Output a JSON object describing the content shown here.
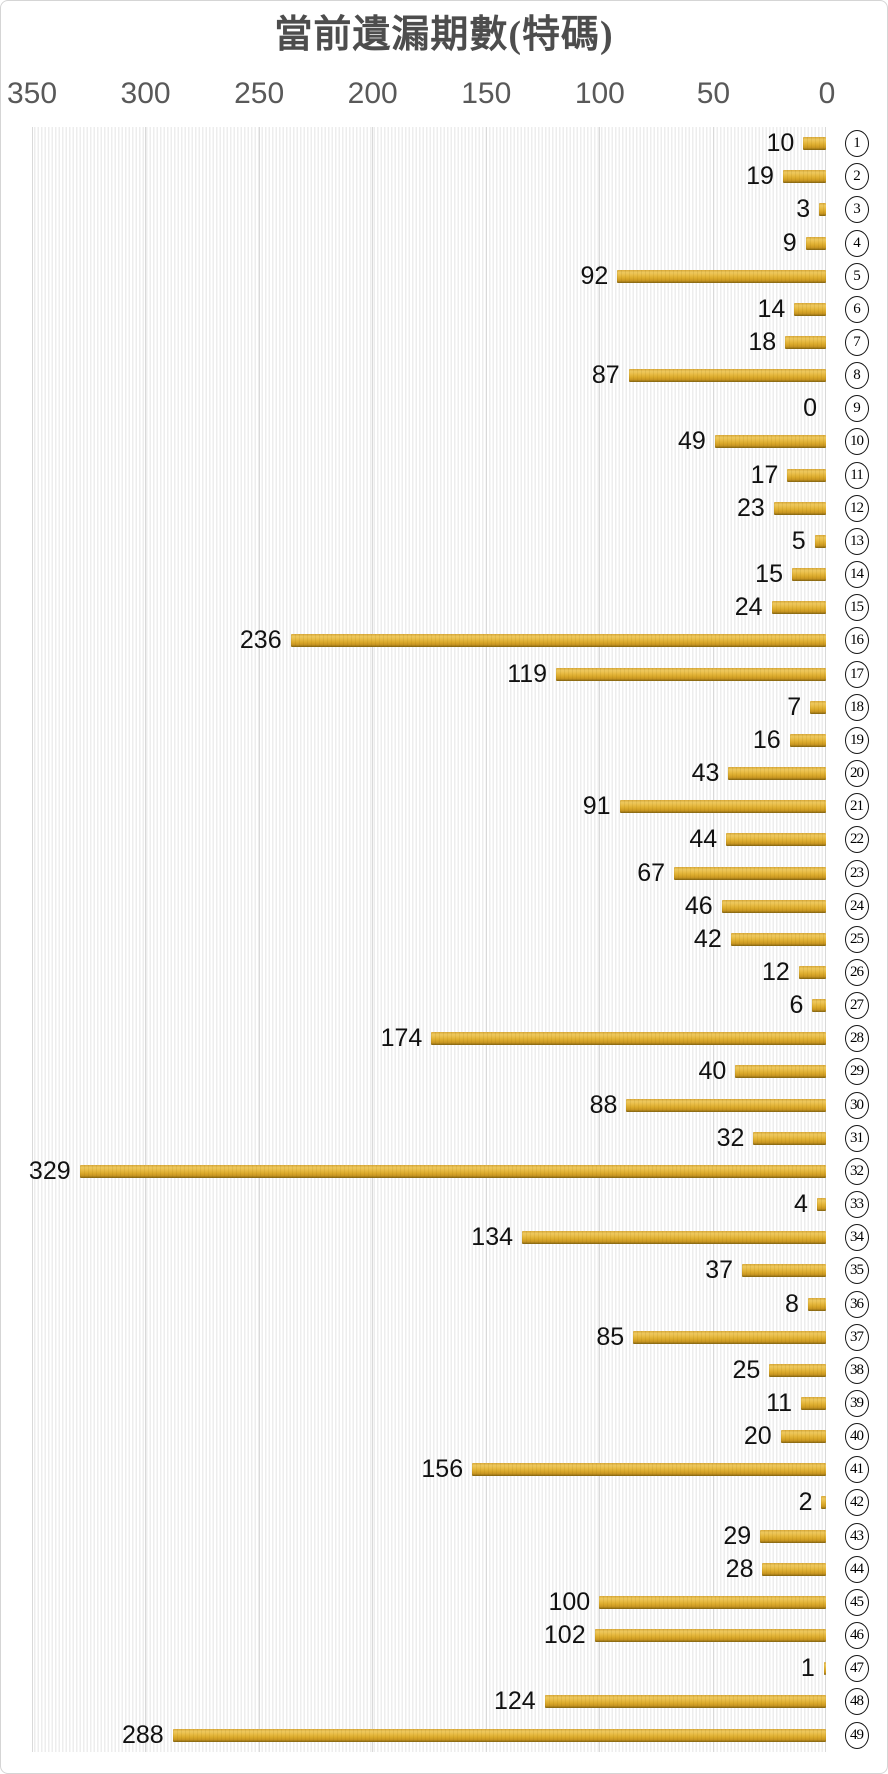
{
  "chart_data": {
    "type": "bar",
    "orientation": "horizontal",
    "title": "當前遺漏期數(特碼)",
    "categories": [
      1,
      2,
      3,
      4,
      5,
      6,
      7,
      8,
      9,
      10,
      11,
      12,
      13,
      14,
      15,
      16,
      17,
      18,
      19,
      20,
      21,
      22,
      23,
      24,
      25,
      26,
      27,
      28,
      29,
      30,
      31,
      32,
      33,
      34,
      35,
      36,
      37,
      38,
      39,
      40,
      41,
      42,
      43,
      44,
      45,
      46,
      47,
      48,
      49
    ],
    "category_glyph_style": "circled-number",
    "values": [
      10,
      19,
      3,
      9,
      92,
      14,
      18,
      87,
      0,
      49,
      17,
      23,
      5,
      15,
      24,
      236,
      119,
      7,
      16,
      43,
      91,
      44,
      67,
      46,
      42,
      12,
      6,
      174,
      40,
      88,
      32,
      329,
      4,
      134,
      37,
      8,
      85,
      25,
      11,
      20,
      156,
      2,
      29,
      28,
      100,
      102,
      1,
      124,
      288
    ],
    "x_ticks": [
      "350",
      "300",
      "250",
      "200",
      "150",
      "100",
      "50",
      "0"
    ],
    "xlim": [
      0,
      350
    ],
    "axis_reversed": true,
    "value_labels_position": "left-of-bar",
    "grid": true,
    "legend": "none",
    "colors": {
      "bar_gold": "#DCAB2C",
      "bar_highlight": "#EEC95E",
      "bar_shadow": "#7D5F10",
      "gridline": "#D9D9D9",
      "tick_text": "#595959",
      "title_text": "#4D4D4D",
      "value_text": "#111111",
      "background": "#FFFFFF"
    }
  }
}
